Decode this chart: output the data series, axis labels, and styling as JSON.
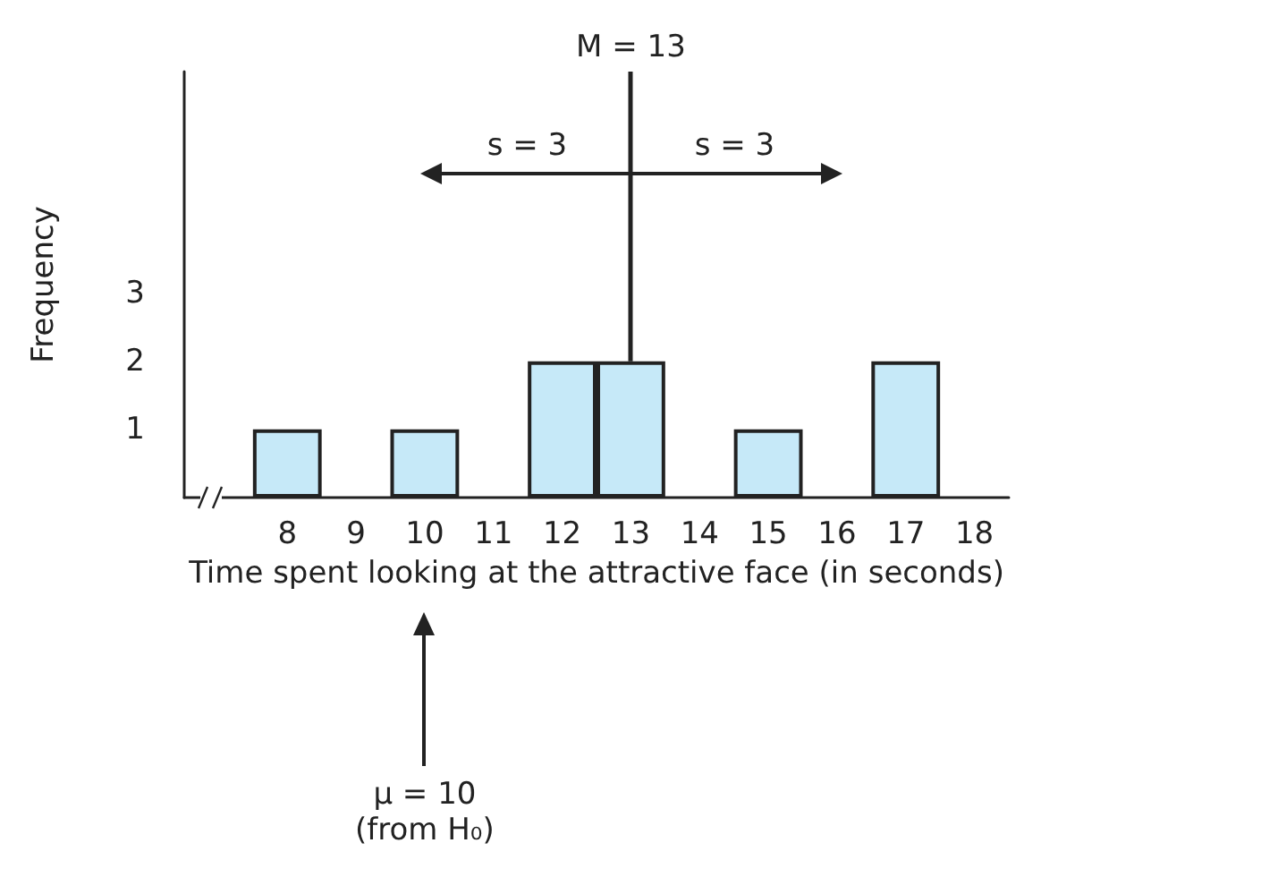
{
  "chart_data": {
    "type": "bar",
    "xlabel": "Time spent looking at the attractive face (in seconds)",
    "ylabel": "Frequency",
    "x": [
      8,
      10,
      12,
      13,
      15,
      17
    ],
    "values": [
      1,
      1,
      2,
      2,
      1,
      2
    ],
    "color": "#c6e9f8",
    "xlim": [
      6.5,
      18.5
    ],
    "xticks": [
      8,
      9,
      10,
      11,
      12,
      13,
      14,
      15,
      16,
      17,
      18
    ],
    "ylim": [
      0,
      6.25
    ],
    "yticks": [
      1,
      2,
      3
    ],
    "grid": false,
    "ref_lines": [
      {
        "axis": "x",
        "value": 13,
        "label": "M = 13"
      }
    ],
    "annotations": [
      "s = 3",
      "s = 3",
      "μ = 10\n(from H₀)"
    ]
  }
}
